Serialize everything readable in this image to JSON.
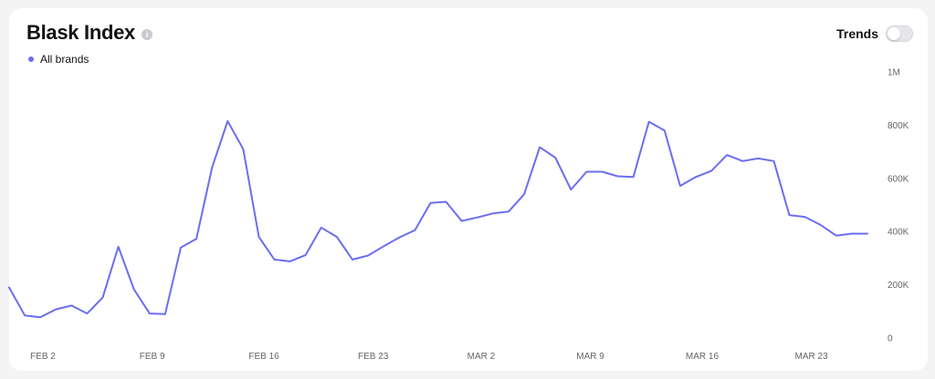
{
  "header": {
    "title": "Blask Index",
    "legend_label": "All brands",
    "trends_label": "Trends",
    "trends_on": false
  },
  "colors": {
    "line": "#6b6ef0",
    "background": "#f4f4f5",
    "card": "#ffffff"
  },
  "icons": {
    "info": "info-icon"
  },
  "chart_data": {
    "type": "line",
    "title": "Blask Index",
    "xlabel": "",
    "ylabel": "",
    "x_ticks": [
      "FEB 2",
      "FEB 9",
      "FEB 16",
      "FEB 23",
      "MAR 2",
      "MAR 9",
      "MAR 16",
      "MAR 23"
    ],
    "y_ticks": [
      "0",
      "200K",
      "400K",
      "600K",
      "800K",
      "1M"
    ],
    "ylim": [
      0,
      1000000
    ],
    "x_start": "2025-02-01",
    "x_end": "2025-03-28",
    "grid": false,
    "legend": "top-left",
    "series": [
      {
        "name": "All brands",
        "x": [
          "2025-02-01",
          "2025-02-02",
          "2025-02-03",
          "2025-02-04",
          "2025-02-05",
          "2025-02-06",
          "2025-02-07",
          "2025-02-08",
          "2025-02-09",
          "2025-02-10",
          "2025-02-11",
          "2025-02-12",
          "2025-02-13",
          "2025-02-14",
          "2025-02-15",
          "2025-02-16",
          "2025-02-17",
          "2025-02-18",
          "2025-02-19",
          "2025-02-20",
          "2025-02-21",
          "2025-02-22",
          "2025-02-23",
          "2025-02-24",
          "2025-02-25",
          "2025-02-26",
          "2025-02-27",
          "2025-02-28",
          "2025-03-01",
          "2025-03-02",
          "2025-03-03",
          "2025-03-04",
          "2025-03-05",
          "2025-03-06",
          "2025-03-07",
          "2025-03-08",
          "2025-03-09",
          "2025-03-10",
          "2025-03-11",
          "2025-03-12",
          "2025-03-13",
          "2025-03-14",
          "2025-03-15",
          "2025-03-16",
          "2025-03-17",
          "2025-03-18",
          "2025-03-19",
          "2025-03-20",
          "2025-03-21",
          "2025-03-22",
          "2025-03-23",
          "2025-03-24",
          "2025-03-25",
          "2025-03-26",
          "2025-03-27",
          "2025-03-28"
        ],
        "values": [
          190000,
          85000,
          78000,
          108000,
          122000,
          92000,
          152000,
          343000,
          183000,
          92000,
          90000,
          340000,
          373000,
          640000,
          815000,
          710000,
          380000,
          295000,
          288000,
          312000,
          415000,
          380000,
          295000,
          310000,
          345000,
          378000,
          405000,
          508000,
          512000,
          440000,
          453000,
          468000,
          475000,
          540000,
          717000,
          678000,
          558000,
          625000,
          625000,
          608000,
          605000,
          813000,
          780000,
          572000,
          605000,
          628000,
          688000,
          665000,
          675000,
          665000,
          462000,
          455000,
          425000,
          385000,
          392000,
          392000
        ]
      }
    ]
  }
}
